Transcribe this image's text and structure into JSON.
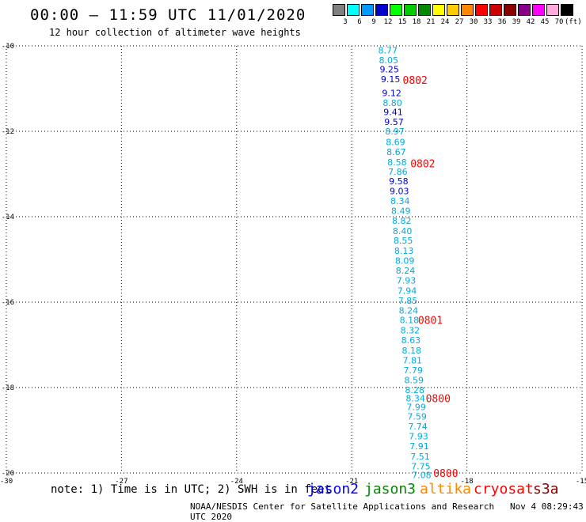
{
  "header": {
    "title": "00:00 – 11:59 UTC 11/01/2020",
    "subtitle": "12 hour collection of altimeter wave heights"
  },
  "color_scale": {
    "unit": "(ft)",
    "items": [
      {
        "label": "3",
        "color": "#808080"
      },
      {
        "label": "6",
        "color": "#00ffff"
      },
      {
        "label": "9",
        "color": "#0099ff"
      },
      {
        "label": "12",
        "color": "#0000cc"
      },
      {
        "label": "15",
        "color": "#00ff00"
      },
      {
        "label": "18",
        "color": "#00cc00"
      },
      {
        "label": "21",
        "color": "#008800"
      },
      {
        "label": "24",
        "color": "#ffff00"
      },
      {
        "label": "27",
        "color": "#ffcc00"
      },
      {
        "label": "30",
        "color": "#ff8800"
      },
      {
        "label": "33",
        "color": "#ff0000"
      },
      {
        "label": "36",
        "color": "#cc0000"
      },
      {
        "label": "39",
        "color": "#880000"
      },
      {
        "label": "42",
        "color": "#880088"
      },
      {
        "label": "45",
        "color": "#ff00ff"
      },
      {
        "label": "70",
        "color": "#ffaadd"
      },
      {
        "label": "",
        "color": "#000000"
      }
    ]
  },
  "legend": {
    "note": "note: 1) Time is in UTC; 2) SWH is in feet",
    "satellites": [
      {
        "label": "jason2",
        "color": "#0000ff"
      },
      {
        "label": "jason3",
        "color": "#008800"
      },
      {
        "label": "altika",
        "color": "#ff8800"
      },
      {
        "label": "cryosat",
        "color": "#ff0000"
      },
      {
        "label": "s3a",
        "color": "#880000"
      }
    ]
  },
  "footer": {
    "credit": "NOAA/NESDIS Center for Satellite Applications and Research",
    "timestamp": "Nov  4 08:29:43 UTC 2020"
  },
  "chart_data": {
    "type": "scatter",
    "title": "",
    "xlim": [
      -30,
      -15
    ],
    "ylim": [
      -20,
      -10
    ],
    "x_ticks": [
      "-30",
      "-27",
      "-24",
      "-21",
      "-18",
      "-15"
    ],
    "y_ticks": [
      "-10",
      "-12",
      "-14",
      "-16",
      "-18",
      "-20"
    ],
    "grid": true,
    "swh_points": [
      {
        "x": -20.06,
        "y": -10.1,
        "value": "8.77",
        "color": "#00aadd"
      },
      {
        "x": -20.04,
        "y": -10.33,
        "value": "8.05",
        "color": "#00aadd"
      },
      {
        "x": -20.02,
        "y": -10.55,
        "value": "9.25",
        "color": "#0000cc"
      },
      {
        "x": -19.99,
        "y": -10.78,
        "value": "9.15",
        "color": "#0000cc"
      },
      {
        "x": -19.96,
        "y": -11.1,
        "value": "9.12",
        "color": "#0000cc"
      },
      {
        "x": -19.94,
        "y": -11.33,
        "value": "8.80",
        "color": "#00aadd"
      },
      {
        "x": -19.92,
        "y": -11.55,
        "value": "9.41",
        "color": "#0000cc"
      },
      {
        "x": -19.9,
        "y": -11.78,
        "value": "9.57",
        "color": "#0000cc"
      },
      {
        "x": -19.88,
        "y": -12.0,
        "value": "8.97",
        "color": "#00aadd"
      },
      {
        "x": -19.86,
        "y": -12.25,
        "value": "8.69",
        "color": "#00aadd"
      },
      {
        "x": -19.84,
        "y": -12.48,
        "value": "8.67",
        "color": "#00aadd"
      },
      {
        "x": -19.82,
        "y": -12.72,
        "value": "8.58",
        "color": "#00aadd"
      },
      {
        "x": -19.8,
        "y": -12.94,
        "value": "7.86",
        "color": "#00aadd"
      },
      {
        "x": -19.78,
        "y": -13.17,
        "value": "9.58",
        "color": "#0000cc"
      },
      {
        "x": -19.76,
        "y": -13.4,
        "value": "9.03",
        "color": "#0000cc"
      },
      {
        "x": -19.74,
        "y": -13.63,
        "value": "8.34",
        "color": "#00aadd"
      },
      {
        "x": -19.72,
        "y": -13.86,
        "value": "8.49",
        "color": "#00aadd"
      },
      {
        "x": -19.7,
        "y": -14.09,
        "value": "8.82",
        "color": "#00aadd"
      },
      {
        "x": -19.68,
        "y": -14.33,
        "value": "8.40",
        "color": "#00aadd"
      },
      {
        "x": -19.66,
        "y": -14.56,
        "value": "8.55",
        "color": "#00aadd"
      },
      {
        "x": -19.64,
        "y": -14.8,
        "value": "8.13",
        "color": "#00aadd"
      },
      {
        "x": -19.62,
        "y": -15.03,
        "value": "8.09",
        "color": "#00aadd"
      },
      {
        "x": -19.6,
        "y": -15.26,
        "value": "8.24",
        "color": "#00aadd"
      },
      {
        "x": -19.58,
        "y": -15.49,
        "value": "7.93",
        "color": "#00aadd"
      },
      {
        "x": -19.56,
        "y": -15.73,
        "value": "7.94",
        "color": "#00aadd"
      },
      {
        "x": -19.54,
        "y": -15.96,
        "value": "7.85",
        "color": "#00aadd"
      },
      {
        "x": -19.52,
        "y": -16.19,
        "value": "8.24",
        "color": "#00aadd"
      },
      {
        "x": -19.5,
        "y": -16.42,
        "value": "8.18",
        "color": "#00aadd"
      },
      {
        "x": -19.48,
        "y": -16.66,
        "value": "8.32",
        "color": "#00aadd"
      },
      {
        "x": -19.46,
        "y": -16.89,
        "value": "8.63",
        "color": "#00aadd"
      },
      {
        "x": -19.44,
        "y": -17.13,
        "value": "8.18",
        "color": "#00aadd"
      },
      {
        "x": -19.42,
        "y": -17.36,
        "value": "7.81",
        "color": "#00aadd"
      },
      {
        "x": -19.4,
        "y": -17.59,
        "value": "7.79",
        "color": "#00aadd"
      },
      {
        "x": -19.38,
        "y": -17.82,
        "value": "8.59",
        "color": "#00aadd"
      },
      {
        "x": -19.36,
        "y": -18.06,
        "value": "8.28",
        "color": "#00aadd"
      },
      {
        "x": -19.34,
        "y": -18.25,
        "value": "8.34",
        "color": "#00aadd"
      },
      {
        "x": -19.32,
        "y": -18.45,
        "value": "7.99",
        "color": "#00aadd"
      },
      {
        "x": -19.3,
        "y": -18.68,
        "value": "7.59",
        "color": "#00aadd"
      },
      {
        "x": -19.28,
        "y": -18.91,
        "value": "7.74",
        "color": "#00aadd"
      },
      {
        "x": -19.26,
        "y": -19.14,
        "value": "7.93",
        "color": "#00aadd"
      },
      {
        "x": -19.24,
        "y": -19.37,
        "value": "7.91",
        "color": "#00aadd"
      },
      {
        "x": -19.22,
        "y": -19.61,
        "value": "7.51",
        "color": "#00aadd"
      },
      {
        "x": -19.2,
        "y": -19.84,
        "value": "7.75",
        "color": "#00aadd"
      },
      {
        "x": -19.18,
        "y": -20.05,
        "value": "7.08",
        "color": "#00aadd"
      }
    ],
    "time_labels": [
      {
        "x": -19.35,
        "y": -10.8,
        "value": "0802",
        "color": "#ff0000"
      },
      {
        "x": -19.15,
        "y": -12.75,
        "value": "0802",
        "color": "#ff0000"
      },
      {
        "x": -18.95,
        "y": -16.42,
        "value": "0801",
        "color": "#ff0000"
      },
      {
        "x": -18.75,
        "y": -18.25,
        "value": "0800",
        "color": "#ff0000"
      },
      {
        "x": -18.55,
        "y": -20.0,
        "value": "0800",
        "color": "#ff0000"
      }
    ]
  }
}
